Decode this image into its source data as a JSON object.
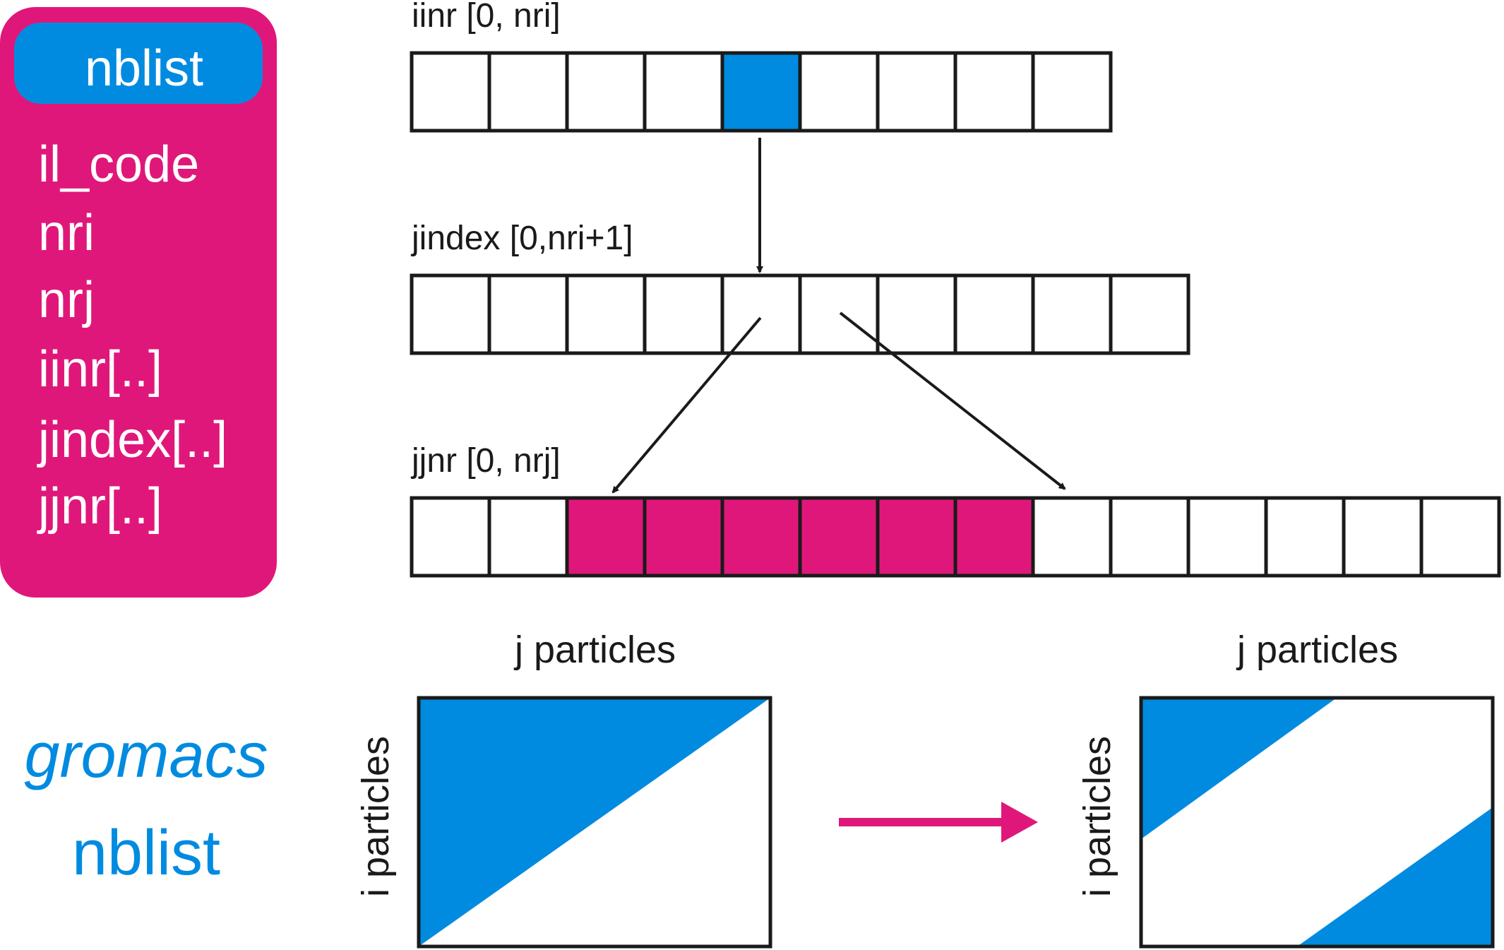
{
  "colors": {
    "magenta": "#e0177a",
    "blue": "#008be0",
    "ink": "#1a1a1a",
    "white": "#ffffff"
  },
  "struct_panel": {
    "header": "nblist",
    "fields": [
      "il_code",
      "nri",
      "nrj",
      "iinr[..]",
      "jindex[..]",
      "jjnr[..]"
    ]
  },
  "caption": {
    "line1": "gromacs",
    "line2": "nblist"
  },
  "arrays": {
    "iinr": {
      "label": "iinr [0, nri]",
      "cells": 9,
      "highlight": [
        4
      ],
      "highlight_color": "blue"
    },
    "jindex": {
      "label": "jindex [0,nri+1]",
      "cells": 10,
      "highlight": [],
      "highlight_color": "blue"
    },
    "jjnr": {
      "label": "jjnr [0, nrj]",
      "cells": 14,
      "highlight": [
        2,
        3,
        4,
        5,
        6,
        7
      ],
      "highlight_color": "magenta"
    }
  },
  "matrices": {
    "full": {
      "x_label": "j particles",
      "y_label": "i particles",
      "shading": "upper-triangle"
    },
    "half": {
      "x_label": "j particles",
      "y_label": "i particles",
      "shading": "band-corners"
    }
  }
}
